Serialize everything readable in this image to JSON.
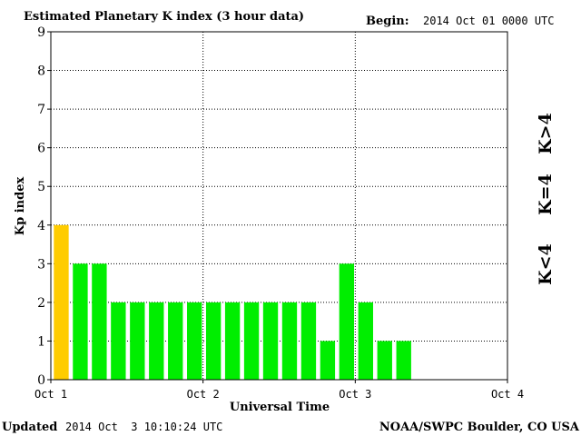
{
  "title": "Estimated Planetary K index (3 hour data)",
  "begin_label": "Begin:",
  "begin_value": "2014 Oct 01 0000 UTC",
  "updated_label": "Updated",
  "updated_value": "2014 Oct  3 10:10:24 UTC",
  "source": "NOAA/SWPC Boulder, CO USA",
  "legend": [
    {
      "label": "K>4",
      "color": "#ff2a00"
    },
    {
      "label": "K=4",
      "color": "#ffcc00"
    },
    {
      "label": "K<4",
      "color": "#00ee00"
    }
  ],
  "chart_data": {
    "type": "bar",
    "title": "Estimated Planetary K index (3 hour data)",
    "xlabel": "Universal Time",
    "ylabel": "Kp index",
    "ylim": [
      0,
      9
    ],
    "yticks": [
      "0",
      "1",
      "2",
      "3",
      "4",
      "5",
      "6",
      "7",
      "8",
      "9"
    ],
    "xticks": [
      "Oct 1",
      "Oct 2",
      "Oct 3",
      "Oct 4"
    ],
    "xlim_days": [
      0,
      3
    ],
    "bar_interval_hours": 3,
    "grid": true,
    "legend_position": "right",
    "colors": {
      "above_4": "#ff2a00",
      "equal_4": "#ffcc00",
      "below_4": "#00ee00"
    },
    "values": [
      4,
      3,
      3,
      2,
      2,
      2,
      2,
      2,
      2,
      2,
      2,
      2,
      2,
      2,
      1,
      3,
      2,
      1,
      1
    ]
  }
}
